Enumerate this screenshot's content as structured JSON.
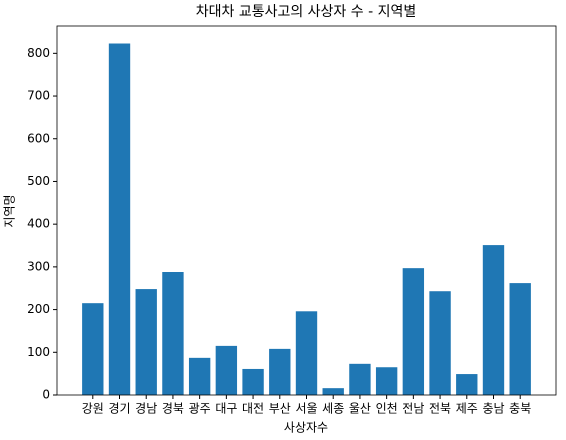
{
  "chart_data": {
    "type": "bar",
    "title": "차대차 교통사고의 사상자 수 - 지역별",
    "x_label": "사상자수",
    "y_label": "지역명",
    "categories": [
      "강원",
      "경기",
      "경남",
      "경북",
      "광주",
      "대구",
      "대전",
      "부산",
      "서울",
      "세종",
      "울산",
      "인천",
      "전남",
      "전북",
      "제주",
      "충남",
      "충북"
    ],
    "values": [
      215,
      823,
      248,
      288,
      87,
      115,
      61,
      108,
      196,
      16,
      73,
      65,
      297,
      243,
      49,
      351,
      262
    ],
    "color": "#1f77b4",
    "ylim": [
      0,
      864
    ],
    "yticks": [
      0,
      100,
      200,
      300,
      400,
      500,
      600,
      700,
      800
    ],
    "grid": false
  }
}
